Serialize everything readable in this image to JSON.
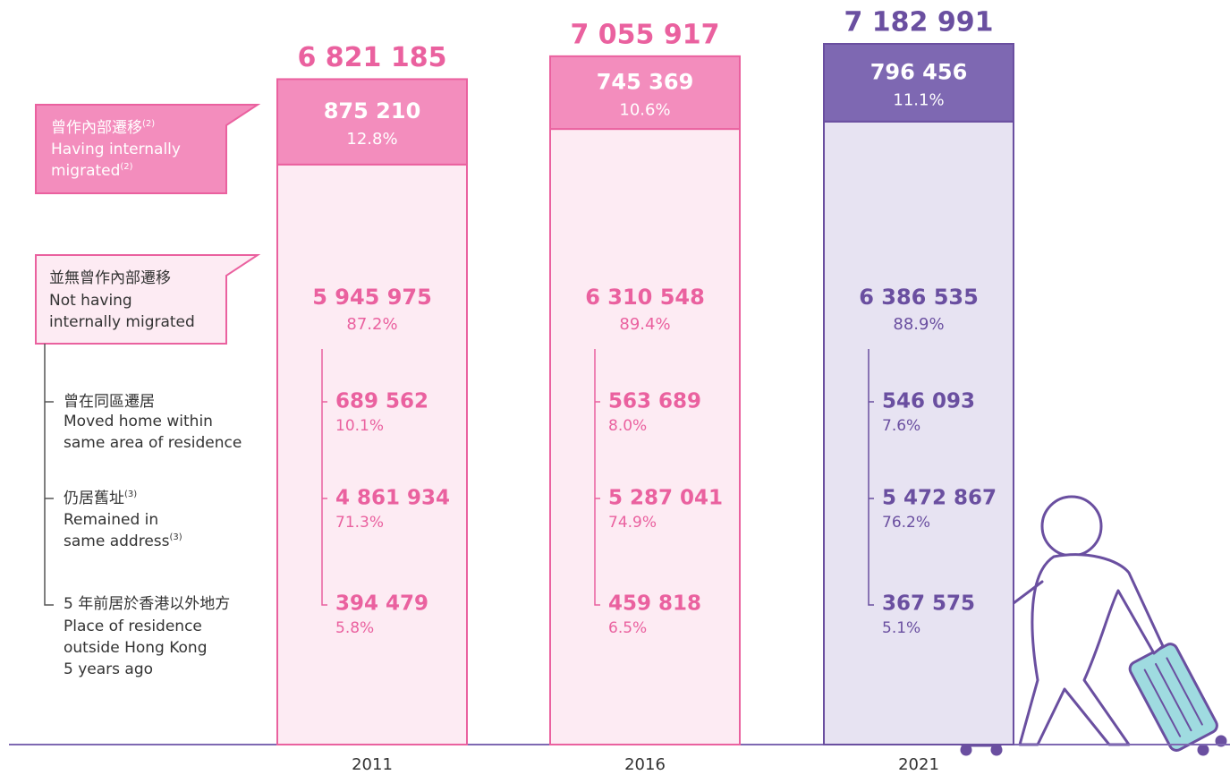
{
  "chart_data": {
    "type": "stacked_bar",
    "categories": [
      "2011",
      "2016",
      "2021"
    ],
    "totals": [
      6821185,
      7055917,
      7182991
    ],
    "total_labels": [
      "6 821 185",
      "7 055 917",
      "7 182 991"
    ],
    "text_colors": [
      "#ea619f",
      "#ea619f",
      "#6a4fa0"
    ],
    "series": [
      {
        "name": "曾作內部遷移",
        "note": "(2)",
        "name_en": [
          "Having internally",
          "migrated"
        ],
        "colors": [
          "#f38dbd",
          "#f38dbd",
          "#7e68b2"
        ],
        "values": [
          875210,
          745369,
          796456
        ],
        "value_labels": [
          "875 210",
          "745 369",
          "796 456"
        ],
        "shares": [
          12.8,
          10.6,
          11.1
        ],
        "share_labels": [
          "12.8%",
          "10.6%",
          "11.1%"
        ]
      },
      {
        "name": "並無曾作內部遷移",
        "name_en": [
          "Not having",
          "internally migrated"
        ],
        "colors": [
          "#fdebf3",
          "#fdebf3",
          "#e7e3f2"
        ],
        "values": [
          5945975,
          6310548,
          6386535
        ],
        "value_labels": [
          "5 945 975",
          "6 310 548",
          "6 386 535"
        ],
        "shares": [
          87.2,
          89.4,
          88.9
        ],
        "share_labels": [
          "87.2%",
          "89.4%",
          "88.9%"
        ]
      }
    ],
    "breakdown": [
      {
        "name": "曾在同區遷居",
        "name_en": [
          "Moved home within",
          "same area of residence"
        ],
        "values": [
          689562,
          563689,
          546093
        ],
        "value_labels": [
          "689 562",
          "563 689",
          "546 093"
        ],
        "shares": [
          10.1,
          8.0,
          7.6
        ],
        "share_labels": [
          "10.1%",
          "8.0%",
          "7.6%"
        ]
      },
      {
        "name": "仍居舊址",
        "note": "(3)",
        "name_en": [
          "Remained in",
          "same address"
        ],
        "values": [
          4861934,
          5287041,
          5472867
        ],
        "value_labels": [
          "4 861 934",
          "5 287 041",
          "5 472 867"
        ],
        "shares": [
          71.3,
          74.9,
          76.2
        ],
        "share_labels": [
          "71.3%",
          "74.9%",
          "76.2%"
        ]
      },
      {
        "name": "5 年前居於香港以外地方",
        "name_en": [
          "Place of residence",
          "outside Hong Kong",
          "5 years ago"
        ],
        "values": [
          394479,
          459818,
          367575
        ],
        "value_labels": [
          "394 479",
          "459 818",
          "367 575"
        ],
        "shares": [
          5.8,
          6.5,
          5.1
        ],
        "share_labels": [
          "5.8%",
          "6.5%",
          "5.1%"
        ]
      }
    ]
  }
}
